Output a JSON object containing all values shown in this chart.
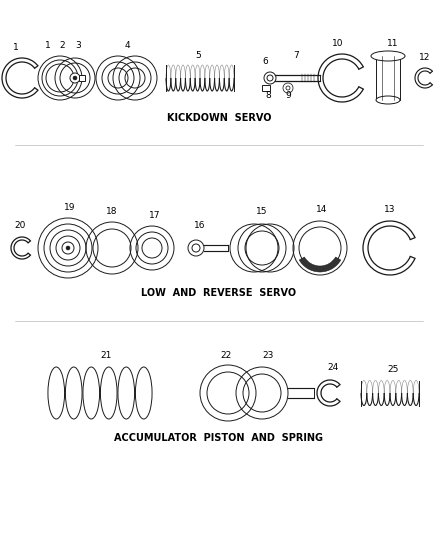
{
  "background_color": "#ffffff",
  "line_color": "#1a1a1a",
  "section_labels": {
    "kickdown": "KICKDOWN  SERVO",
    "low_reverse": "LOW  AND  REVERSE  SERVO",
    "accumulator": "ACCUMULATOR  PISTON  AND  SPRING"
  },
  "figsize": [
    4.38,
    5.33
  ],
  "dpi": 100,
  "label_fontsize": 7.0,
  "number_fontsize": 6.5
}
